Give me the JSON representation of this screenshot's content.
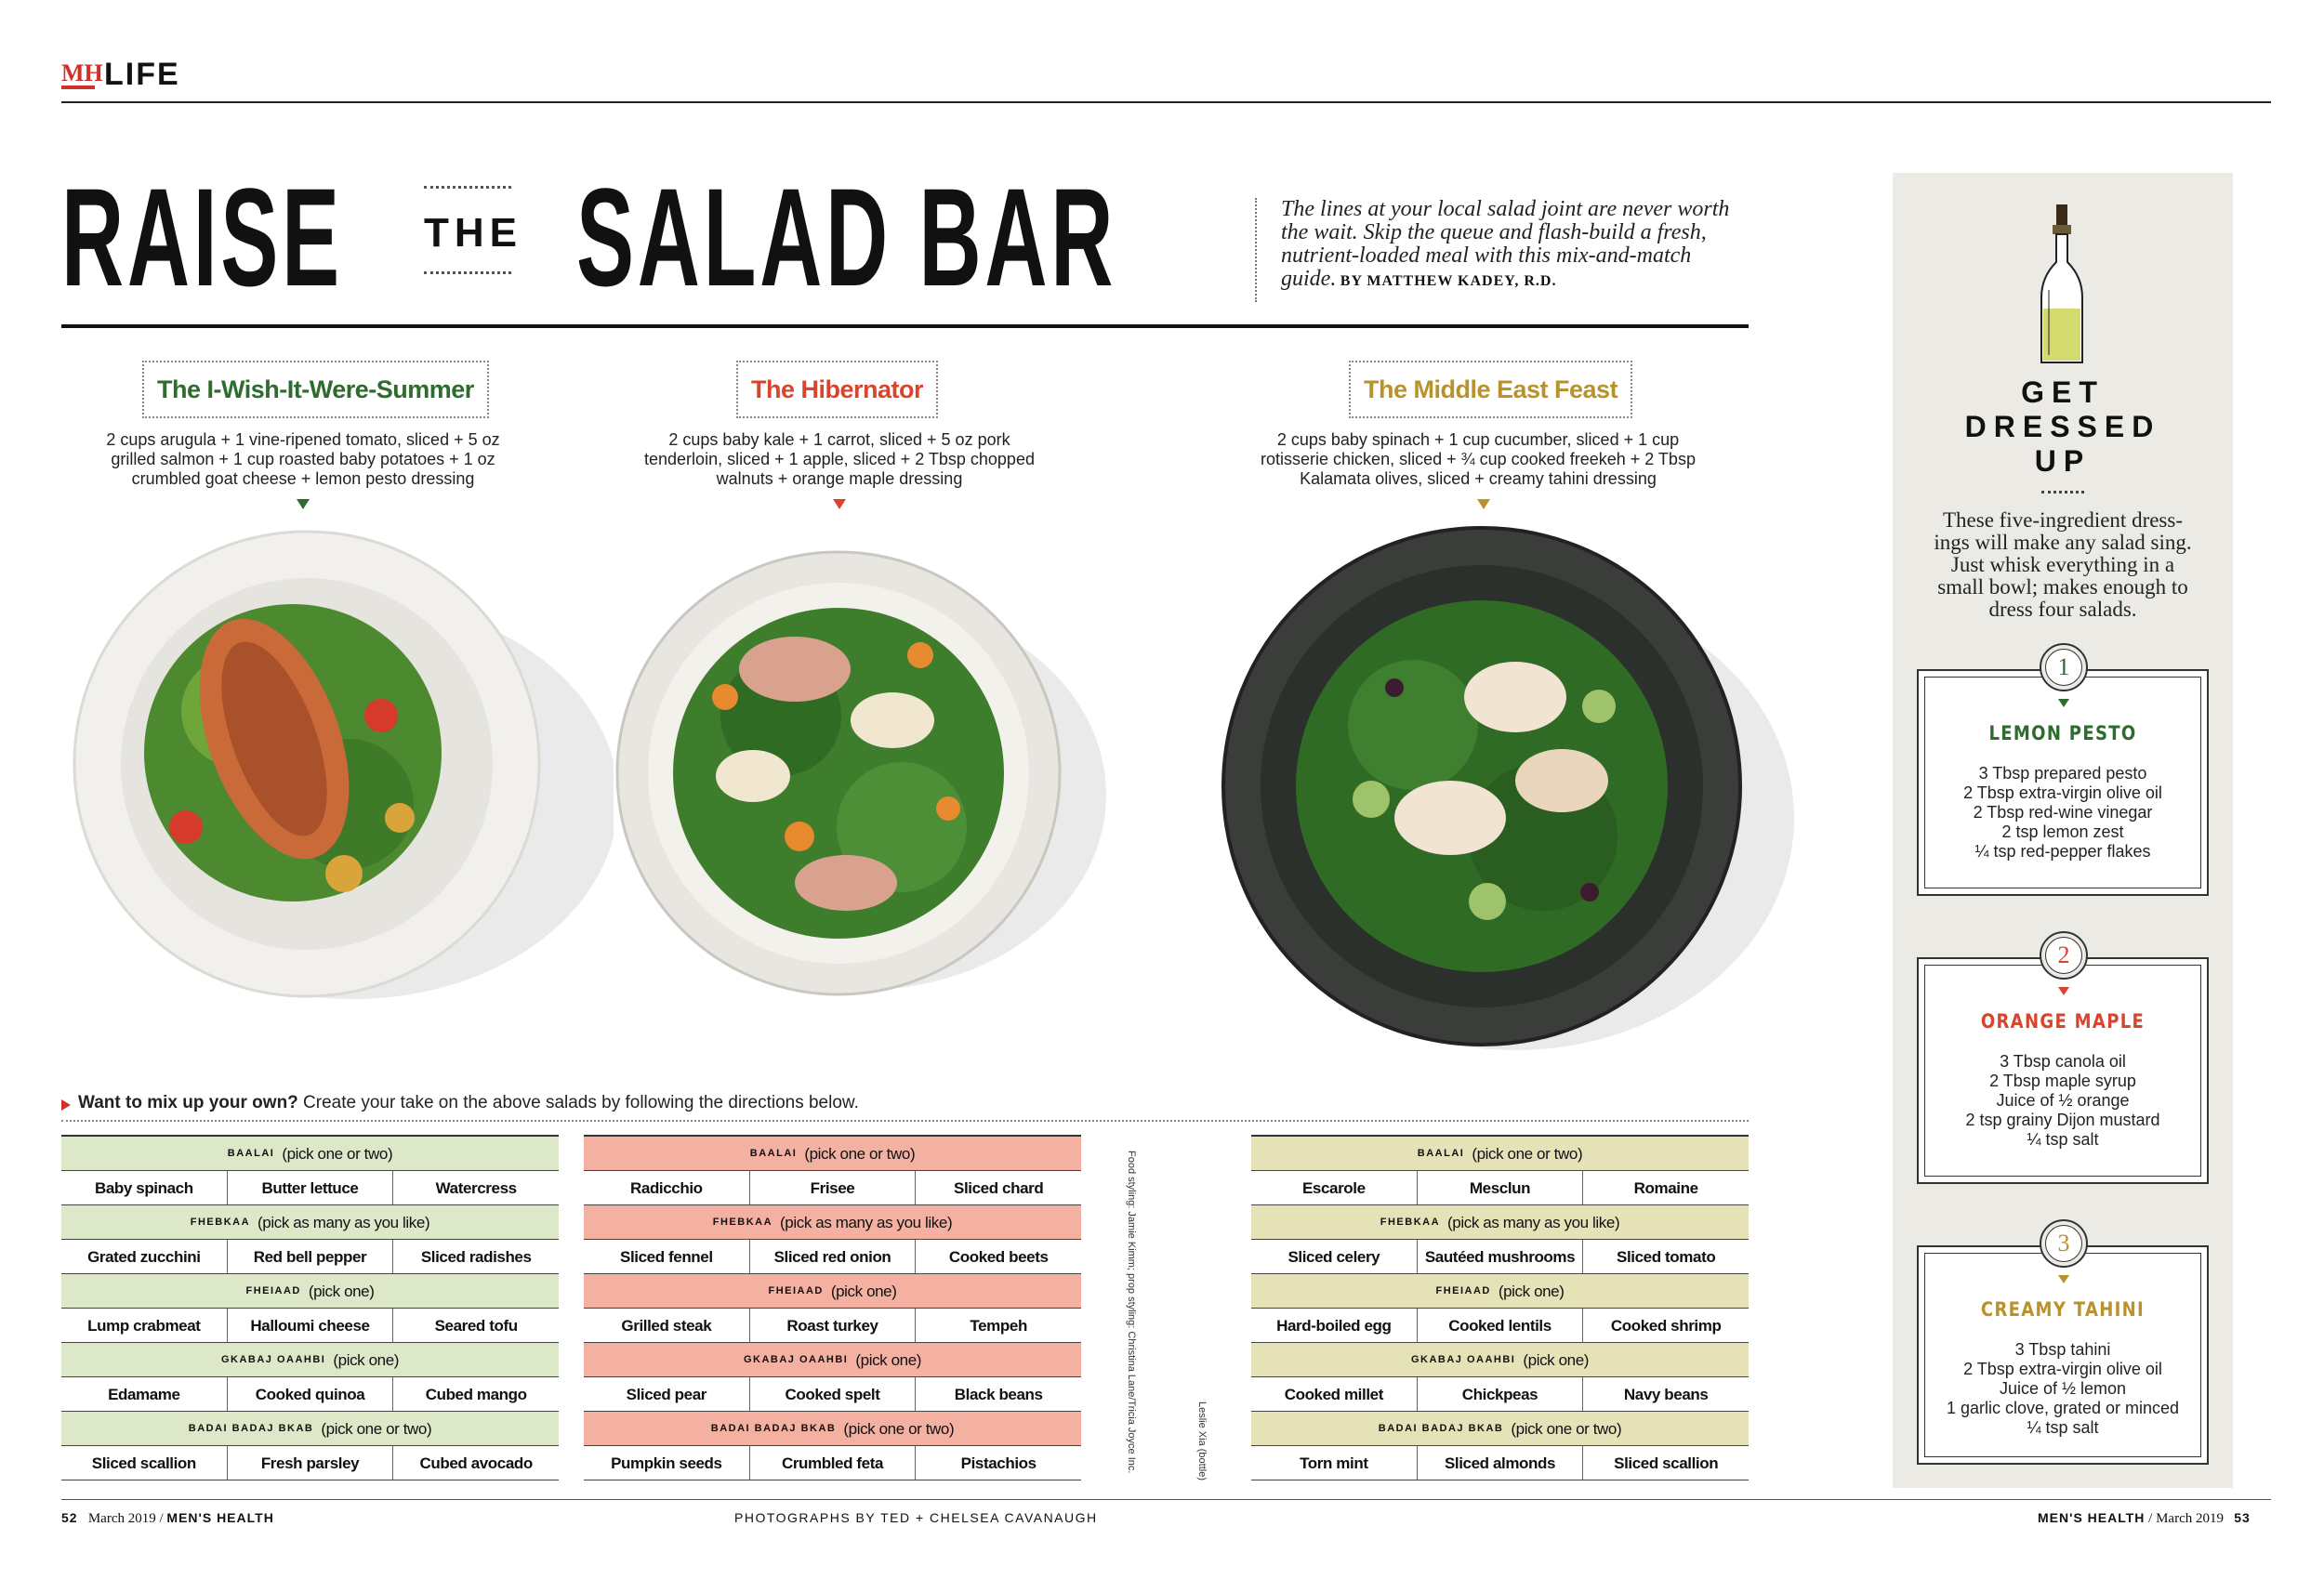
{
  "header": {
    "logo": "MH",
    "section": "LIFE"
  },
  "title": {
    "word1": "RAISE",
    "word2": "THE",
    "word3": "SALAD BAR"
  },
  "intro": {
    "text": "The lines at your local salad joint are never worth the wait. Skip the queue and flash-build a fresh, nutrient-loaded meal with this mix-and-match guide.",
    "byline": "BY MATTHEW KADEY, R.D."
  },
  "salads": [
    {
      "name": "The I-Wish-It-Were-Summer",
      "color": "#2e6b2e",
      "line1": "2 cups arugula + 1 vine-ripened tomato, sliced + 5 oz",
      "line2": "grilled salmon + 1 cup roasted baby potatoes + 1 oz",
      "line3": "crumbled goat cheese + lemon pesto dressing"
    },
    {
      "name": "The Hibernator",
      "color": "#d9452c",
      "line1": "2 cups baby kale + 1 carrot, sliced + 5 oz pork",
      "line2": "tenderloin, sliced + 1 apple, sliced + 2 Tbsp chopped",
      "line3": "walnuts + orange maple dressing"
    },
    {
      "name": "The Middle East Feast",
      "color": "#b8922a",
      "line1": "2 cups baby spinach + 1 cup cucumber, sliced + 1 cup",
      "line2": "rotisserie chicken, sliced + ¾ cup cooked freekeh + 2 Tbsp",
      "line3": "Kalamata olives, sliced + creamy tahini dressing"
    }
  ],
  "mix": {
    "lead": "Want to mix up your own?",
    "rest": " Create your take on the above salads by following the directions below."
  },
  "tables": [
    {
      "color": "#dde8c8",
      "rows": [
        {
          "code": "BAALAI",
          "note": "(pick one or two)",
          "items": [
            "Baby spinach",
            "Butter lettuce",
            "Watercress"
          ]
        },
        {
          "code": "FHEBKAA",
          "note": "(pick as many as you like)",
          "items": [
            "Grated zucchini",
            "Red bell pepper",
            "Sliced radishes"
          ]
        },
        {
          "code": "FHEIAAD",
          "note": "(pick one)",
          "items": [
            "Lump crabmeat",
            "Halloumi cheese",
            "Seared tofu"
          ]
        },
        {
          "code": "GKABAJ OAAHBI",
          "note": "(pick one)",
          "items": [
            "Edamame",
            "Cooked quinoa",
            "Cubed mango"
          ]
        },
        {
          "code": "BADAI BADAJ BKAB",
          "note": "(pick one or two)",
          "items": [
            "Sliced scallion",
            "Fresh parsley",
            "Cubed avocado"
          ]
        }
      ]
    },
    {
      "color": "#f4b0a0",
      "rows": [
        {
          "code": "BAALAI",
          "note": "(pick one or two)",
          "items": [
            "Radicchio",
            "Frisee",
            "Sliced chard"
          ]
        },
        {
          "code": "FHEBKAA",
          "note": "(pick as many as you like)",
          "items": [
            "Sliced fennel",
            "Sliced red onion",
            "Cooked beets"
          ]
        },
        {
          "code": "FHEIAAD",
          "note": "(pick one)",
          "items": [
            "Grilled steak",
            "Roast turkey",
            "Tempeh"
          ]
        },
        {
          "code": "GKABAJ OAAHBI",
          "note": "(pick one)",
          "items": [
            "Sliced pear",
            "Cooked spelt",
            "Black beans"
          ]
        },
        {
          "code": "BADAI BADAJ BKAB",
          "note": "(pick one or two)",
          "items": [
            "Pumpkin seeds",
            "Crumbled feta",
            "Pistachios"
          ]
        }
      ]
    },
    {
      "color": "#e6e2b8",
      "rows": [
        {
          "code": "BAALAI",
          "note": "(pick one or two)",
          "items": [
            "Escarole",
            "Mesclun",
            "Romaine"
          ]
        },
        {
          "code": "FHEBKAA",
          "note": "(pick as many as you like)",
          "items": [
            "Sliced celery",
            "Sautéed mushrooms",
            "Sliced tomato"
          ]
        },
        {
          "code": "FHEIAAD",
          "note": "(pick one)",
          "items": [
            "Hard-boiled egg",
            "Cooked lentils",
            "Cooked shrimp"
          ]
        },
        {
          "code": "GKABAJ OAAHBI",
          "note": "(pick one)",
          "items": [
            "Cooked millet",
            "Chickpeas",
            "Navy beans"
          ]
        },
        {
          "code": "BADAI BADAJ BKAB",
          "note": "(pick one or two)",
          "items": [
            "Torn mint",
            "Sliced almonds",
            "Sliced scallion"
          ]
        }
      ]
    }
  ],
  "credits": {
    "styling": "Food styling: Jamie Kimm; prop styling: Christina Lane/Tricia Joyce Inc.",
    "bottle": "Leslie Xia (bottle)"
  },
  "sidebar": {
    "title1": "GET",
    "title2": "DRESSED",
    "title3": "UP",
    "text": "These five-ingredient dress-ings will make any salad sing. Just whisk everything in a small bowl; makes enough to dress four salads."
  },
  "dressings": [
    {
      "num": "1",
      "name": "LEMON PESTO",
      "color": "#2e6b2e",
      "lines": [
        "3 Tbsp prepared pesto",
        "2 Tbsp extra-virgin olive oil",
        "2 Tbsp red-wine vinegar",
        "2 tsp lemon zest",
        "¼ tsp red-pepper flakes"
      ]
    },
    {
      "num": "2",
      "name": "ORANGE MAPLE",
      "color": "#d9452c",
      "lines": [
        "3 Tbsp canola oil",
        "2 Tbsp maple syrup",
        "Juice of ½ orange",
        "2 tsp grainy Dijon mustard",
        "¼ tsp salt"
      ]
    },
    {
      "num": "3",
      "name": "CREAMY TAHINI",
      "color": "#b8922a",
      "lines": [
        "3 Tbsp tahini",
        "2 Tbsp extra-virgin olive oil",
        "Juice of ½ lemon",
        "1 garlic clove, grated or minced",
        "¼ tsp salt"
      ]
    }
  ],
  "footer": {
    "left_page": "52",
    "left_date": "March 2019 /",
    "left_mag": "MEN'S HEALTH",
    "center": "PHOTOGRAPHS BY TED + CHELSEA CAVANAUGH",
    "right_mag": "MEN'S HEALTH",
    "right_date": "/ March 2019",
    "right_page": "53"
  }
}
